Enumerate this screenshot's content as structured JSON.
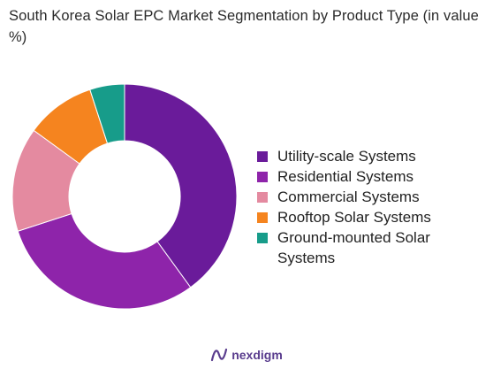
{
  "title": "South Korea Solar EPC Market Segmentation by Product Type (in value %)",
  "brand": {
    "name": "nexdigm",
    "logo_icon": "nexdigm-logo-icon",
    "color": "#5a3d8e"
  },
  "chart_data": {
    "type": "pie",
    "donut": true,
    "title": "South Korea Solar EPC Market Segmentation by Product Type (in value %)",
    "legend_position": "right",
    "categories": [
      "Utility-scale Systems",
      "Residential Systems",
      "Commercial Systems",
      "Rooftop Solar Systems",
      "Ground-mounted Solar Systems"
    ],
    "values": [
      40,
      30,
      15,
      10,
      5
    ],
    "colors": [
      "#6a1b9a",
      "#8e24aa",
      "#e48aa0",
      "#f5841f",
      "#179c8a"
    ]
  }
}
